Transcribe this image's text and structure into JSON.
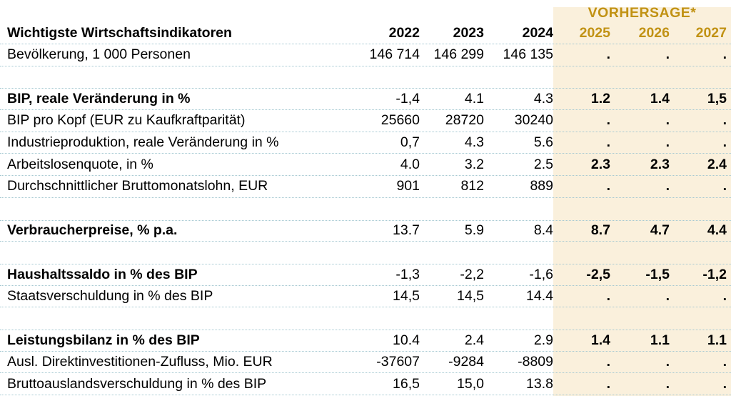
{
  "colors": {
    "accent_gold": "#C19214",
    "forecast_band_bg": "#FAF0DC",
    "row_separator": "#A6C9D2",
    "text": "#000000",
    "background": "#FFFFFF"
  },
  "header": {
    "forecast_label": "VORHERSAGE*",
    "title": "Wichtigste Wirtschaftsindikatoren",
    "years": [
      "2022",
      "2023",
      "2024",
      "2025",
      "2026",
      "2027"
    ]
  },
  "table": {
    "rows": [
      {
        "label": "Bevölkerung, 1 000 Personen",
        "bold": false,
        "values": [
          "146 714",
          "146 299",
          "146 135",
          ".",
          ".",
          "."
        ]
      },
      {
        "type": "spacer"
      },
      {
        "label": "BIP, reale Veränderung in %",
        "bold": true,
        "values": [
          "-1,4",
          "4.1",
          "4.3",
          "1.2",
          "1.4",
          "1,5"
        ]
      },
      {
        "label": "BIP pro Kopf (EUR zu Kaufkraftparität)",
        "bold": false,
        "values": [
          "25660",
          "28720",
          "30240",
          ".",
          ".",
          "."
        ]
      },
      {
        "label": "Industrieproduktion, reale Veränderung in %",
        "bold": false,
        "values": [
          "0,7",
          "4.3",
          "5.6",
          ".",
          ".",
          "."
        ]
      },
      {
        "label": "Arbeitslosenquote, in %",
        "bold": false,
        "values": [
          "4.0",
          "3.2",
          "2.5",
          "2.3",
          "2.3",
          "2.4"
        ]
      },
      {
        "label": "Durchschnittlicher Bruttomonatslohn, EUR",
        "bold": false,
        "values": [
          "901",
          "812",
          "889",
          ".",
          ".",
          "."
        ]
      },
      {
        "type": "spacer"
      },
      {
        "label": "Verbraucherpreise, % p.a.",
        "bold": true,
        "values": [
          "13.7",
          "5.9",
          "8.4",
          "8.7",
          "4.7",
          "4.4"
        ]
      },
      {
        "type": "spacer"
      },
      {
        "label": "Haushaltssaldo in % des BIP",
        "bold": true,
        "values": [
          "-1,3",
          "-2,2",
          "-1,6",
          "-2,5",
          "-1,5",
          "-1,2"
        ]
      },
      {
        "label": "Staatsverschuldung in % des BIP",
        "bold": false,
        "values": [
          "14,5",
          "14,5",
          "14.4",
          ".",
          ".",
          "."
        ]
      },
      {
        "type": "spacer"
      },
      {
        "label": "Leistungsbilanz in % des BIP",
        "bold": true,
        "values": [
          "10.4",
          "2.4",
          "2.9",
          "1.4",
          "1.1",
          "1.1"
        ]
      },
      {
        "label": "Ausl. Direktinvestitionen-Zufluss, Mio. EUR",
        "bold": false,
        "values": [
          "-37607",
          "-9284",
          "-8809",
          ".",
          ".",
          "."
        ]
      },
      {
        "label": "Bruttoauslandsverschuldung in % des BIP",
        "bold": false,
        "values": [
          "16,5",
          "15,0",
          "13.8",
          ".",
          ".",
          "."
        ]
      }
    ]
  }
}
